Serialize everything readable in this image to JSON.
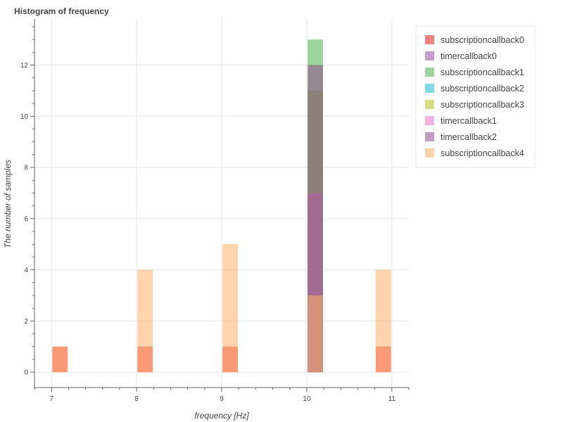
{
  "chart_data": {
    "type": "bar",
    "title": "Histogram of frequency",
    "xlabel": "frequency [Hz]",
    "ylabel": "The number of samples",
    "xlim": [
      6.8,
      11.2
    ],
    "ylim": [
      -0.6,
      13.8
    ],
    "xticks": [
      7,
      8,
      9,
      10,
      11
    ],
    "yticks": [
      0,
      2,
      4,
      6,
      8,
      10,
      12
    ],
    "grid": true,
    "bar_width": 0.18,
    "legend_position": "top-right",
    "series": [
      {
        "name": "subscriptioncallback0",
        "color": "#e41a1c",
        "bins": [
          {
            "x": 7.1,
            "count": 1
          },
          {
            "x": 8.1,
            "count": 1
          },
          {
            "x": 9.1,
            "count": 1
          },
          {
            "x": 10.1,
            "count": 3
          },
          {
            "x": 10.9,
            "count": 1
          }
        ]
      },
      {
        "name": "timercallback0",
        "color": "#984ea3",
        "bins": [
          {
            "x": 10.1,
            "count": 7
          }
        ]
      },
      {
        "name": "subscriptioncallback1",
        "color": "#4daf4a",
        "bins": [
          {
            "x": 10.1,
            "count": 13
          }
        ]
      },
      {
        "name": "subscriptioncallback2",
        "color": "#17becf",
        "bins": [
          {
            "x": 10.1,
            "count": 11
          }
        ]
      },
      {
        "name": "subscriptioncallback3",
        "color": "#bcbd22",
        "bins": [
          {
            "x": 10.1,
            "count": 11
          }
        ]
      },
      {
        "name": "timercallback1",
        "color": "#e377c2",
        "bins": [
          {
            "x": 10.1,
            "count": 7
          }
        ]
      },
      {
        "name": "timercallback2",
        "color": "#8c4a8a",
        "bins": [
          {
            "x": 10.1,
            "count": 12
          }
        ]
      },
      {
        "name": "subscriptioncallback4",
        "color": "#fdae6b",
        "bins": [
          {
            "x": 7.1,
            "count": 1
          },
          {
            "x": 8.1,
            "count": 4
          },
          {
            "x": 9.1,
            "count": 5
          },
          {
            "x": 10.1,
            "count": 3
          },
          {
            "x": 10.9,
            "count": 4
          }
        ]
      }
    ]
  }
}
